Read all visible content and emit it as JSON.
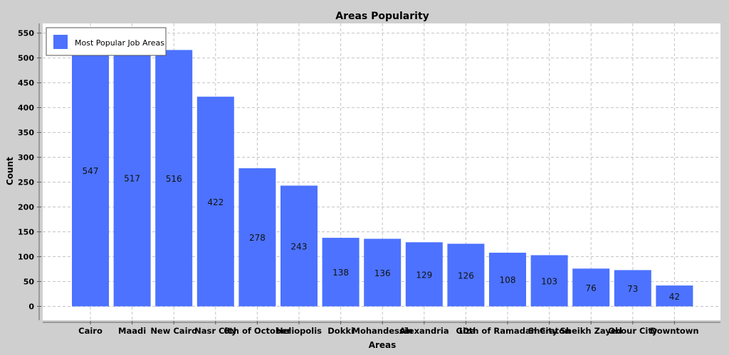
{
  "chart_data": {
    "type": "bar",
    "title": "Areas Popularity",
    "xlabel": "Areas",
    "ylabel": "Count",
    "ylim": [
      0,
      560
    ],
    "yticks": [
      0,
      50,
      100,
      150,
      200,
      250,
      300,
      350,
      400,
      450,
      500,
      550
    ],
    "grid": true,
    "legend": {
      "position": "top-left"
    },
    "categories": [
      "Cairo",
      "Maadi",
      "New Cairo",
      "Nasr City",
      "6th of October",
      "Heliopolis",
      "Dokki",
      "Mohandessin",
      "Alexandria",
      "Giza",
      "10th of Ramadan City",
      "Sheraton",
      "Sheikh Zayed",
      "Obour City",
      "Downtown"
    ],
    "series": [
      {
        "name": "Most Popular Job Areas",
        "color": "#4c72ff",
        "values": [
          547,
          517,
          516,
          422,
          278,
          243,
          138,
          136,
          129,
          126,
          108,
          103,
          76,
          73,
          42
        ]
      }
    ]
  }
}
